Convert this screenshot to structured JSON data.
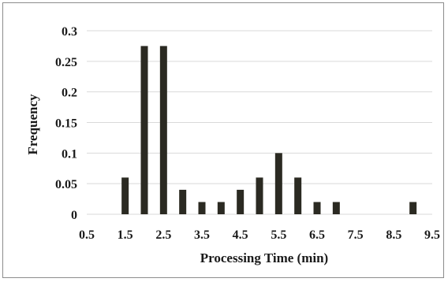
{
  "chart_data": {
    "type": "bar",
    "title": "",
    "xlabel": "Processing Time (min)",
    "ylabel": "Frequency",
    "x_tick_labels": [
      "0.5",
      "1.5",
      "2.5",
      "3.5",
      "4.5",
      "5.5",
      "6.5",
      "7.5",
      "8.5",
      "9.5"
    ],
    "y_tick_labels": [
      "0",
      "0.05",
      "0.1",
      "0.15",
      "0.2",
      "0.25",
      "0.3"
    ],
    "xlim": [
      0.5,
      9.5
    ],
    "ylim": [
      0,
      0.3
    ],
    "grid": "horizontal",
    "bar_color": "#2b2a22",
    "grid_color": "#d9d9d9",
    "x": [
      1.5,
      2.0,
      2.5,
      3.0,
      3.5,
      4.0,
      4.5,
      5.0,
      5.5,
      6.0,
      6.5,
      7.0,
      9.0
    ],
    "values": [
      0.06,
      0.275,
      0.275,
      0.04,
      0.02,
      0.02,
      0.04,
      0.06,
      0.1,
      0.06,
      0.02,
      0.02,
      0.02
    ]
  }
}
